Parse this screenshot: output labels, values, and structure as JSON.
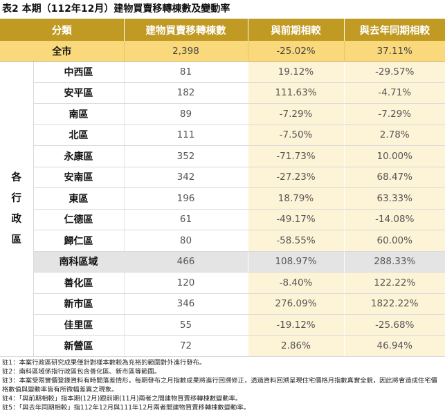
{
  "title": "表2 本期（112年12月）建物買賣移轉棟數及變動率",
  "headers": [
    "分類",
    "建物買賣移轉棟數",
    "與前期相較",
    "與去年同期相較"
  ],
  "city_row": {
    "name": "全市",
    "count": "2,398",
    "change_prev": "-25.02%",
    "change_year": "37.11%"
  },
  "group_label": "各行政區",
  "group_chars": [
    "各",
    "行",
    "政",
    "區"
  ],
  "districts": [
    {
      "name": "中西區",
      "count": "81",
      "change_prev": "19.12%",
      "change_year": "-29.57%"
    },
    {
      "name": "安平區",
      "count": "182",
      "change_prev": "111.63%",
      "change_year": "-4.71%"
    },
    {
      "name": "南區",
      "count": "89",
      "change_prev": "-7.29%",
      "change_year": "-7.29%"
    },
    {
      "name": "北區",
      "count": "111",
      "change_prev": "-7.50%",
      "change_year": "2.78%"
    },
    {
      "name": "永康區",
      "count": "352",
      "change_prev": "-71.73%",
      "change_year": "10.00%"
    },
    {
      "name": "安南區",
      "count": "342",
      "change_prev": "-27.23%",
      "change_year": "68.47%"
    },
    {
      "name": "東區",
      "count": "196",
      "change_prev": "18.79%",
      "change_year": "63.33%"
    },
    {
      "name": "仁德區",
      "count": "61",
      "change_prev": "-49.17%",
      "change_year": "-14.08%"
    },
    {
      "name": "歸仁區",
      "count": "80",
      "change_prev": "-58.55%",
      "change_year": "60.00%"
    },
    {
      "name": "南科區域",
      "count": "466",
      "change_prev": "108.97%",
      "change_year": "288.33%"
    },
    {
      "name": "善化區",
      "count": "120",
      "change_prev": "-8.40%",
      "change_year": "122.22%"
    },
    {
      "name": "新市區",
      "count": "346",
      "change_prev": "276.09%",
      "change_year": "1822.22%"
    },
    {
      "name": "佳里區",
      "count": "55",
      "change_prev": "-19.12%",
      "change_year": "-25.68%"
    },
    {
      "name": "新營區",
      "count": "72",
      "change_prev": "2.86%",
      "change_year": "46.94%"
    }
  ],
  "notes": [
    "註1：本案行政區研究成果僅針對樣本數較為充裕的範圍對外進行發布。",
    "註2：南科區域係指行政區包含善化區、新市區等範圍。",
    "註3：本案受限實價登錄資料有時間落差情形，每期發布之月指數成果將進行回溯修正，透過資料回溯呈現住宅價格月指數真實全貌，因此將會造成住宅價格數值與變動率皆有所微幅差異之現象。",
    "註4：「與前期相較」指本期(12月)跟前期(11月)兩者之間建物買賣移轉棟數變動率。",
    "註5：「與去年同期相較」指112年12月與111年12月兩者間建物買賣移轉棟數變動率。"
  ]
}
